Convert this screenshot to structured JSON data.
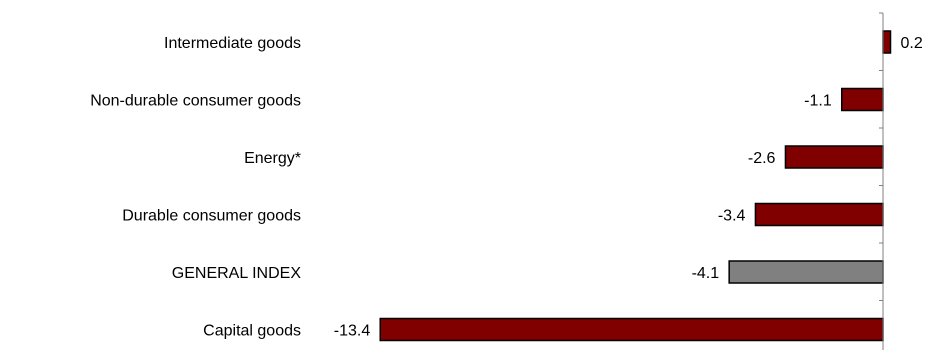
{
  "chart_data": {
    "type": "bar",
    "orientation": "horizontal",
    "categories": [
      "Intermediate goods",
      "Non-durable consumer goods",
      "Energy*",
      "Durable consumer goods",
      "GENERAL INDEX",
      "Capital goods"
    ],
    "values": [
      0.2,
      -1.1,
      -2.6,
      -3.4,
      -4.1,
      -13.4
    ],
    "value_labels": [
      "0.2",
      "-1.1",
      "-2.6",
      "-3.4",
      "-4.1",
      "-13.4"
    ],
    "bar_colors": [
      "#800000",
      "#800000",
      "#800000",
      "#800000",
      "#808080",
      "#800000"
    ],
    "xlim": [
      -13.4,
      0.2
    ],
    "title": "",
    "xlabel": "",
    "ylabel": "",
    "grid": false,
    "legend": "none"
  }
}
